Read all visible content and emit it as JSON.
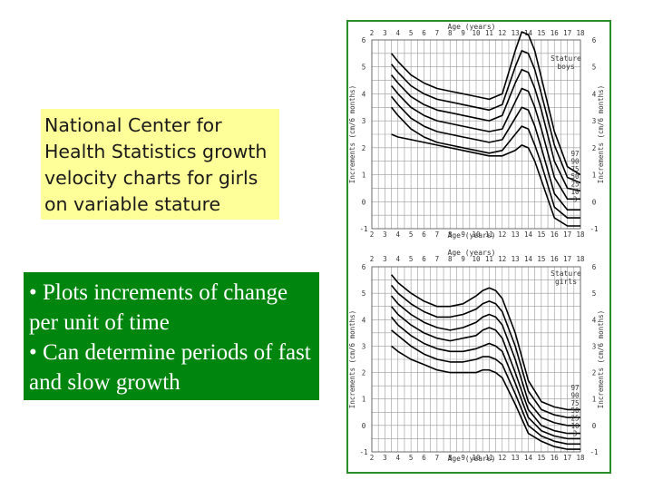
{
  "colors": {
    "yellow": "#ffff99",
    "green": "#00860f",
    "frame": "#2a8c2a",
    "curve": "#000000",
    "grid": "#9a9a9a"
  },
  "info_box": {
    "text": "National Center for Health Statistics growth velocity charts for girls on variable stature"
  },
  "bullets": [
    "• Plots increments of change per unit of time",
    "• Can determine periods of fast and slow growth"
  ],
  "chart_data": [
    {
      "type": "line",
      "title": "Stature boys",
      "xlabel": "Age (years)",
      "ylabel": "Increments (cm/6 months)",
      "xlim": [
        2,
        18
      ],
      "ylim": [
        -1,
        6
      ],
      "x_ticks": [
        "2",
        "3",
        "4",
        "5",
        "6",
        "7",
        "8",
        "9",
        "10",
        "11",
        "12",
        "13",
        "14",
        "15",
        "16",
        "17",
        "18"
      ],
      "y_ticks": [
        "-1",
        "0",
        "1",
        "2",
        "3",
        "4",
        "5",
        "6"
      ],
      "grid": true,
      "x": [
        3.5,
        4,
        5,
        6,
        7,
        8,
        9,
        10,
        11,
        12,
        13,
        13.5,
        14,
        14.5,
        15,
        16,
        17,
        18
      ],
      "series": [
        {
          "name": "97",
          "values": [
            5.5,
            5.2,
            4.7,
            4.4,
            4.2,
            4.1,
            4.0,
            3.9,
            3.8,
            4.0,
            5.6,
            6.3,
            6.2,
            5.6,
            4.6,
            2.6,
            1.3,
            1.0
          ]
        },
        {
          "name": "90",
          "values": [
            5.1,
            4.8,
            4.3,
            4.0,
            3.8,
            3.7,
            3.6,
            3.5,
            3.4,
            3.6,
            5.0,
            5.6,
            5.5,
            4.9,
            4.0,
            2.1,
            0.9,
            0.7
          ]
        },
        {
          "name": "75",
          "values": [
            4.7,
            4.4,
            3.9,
            3.6,
            3.4,
            3.3,
            3.2,
            3.1,
            3.0,
            3.2,
            4.4,
            4.9,
            4.8,
            4.2,
            3.4,
            1.5,
            0.5,
            0.4
          ]
        },
        {
          "name": "50",
          "values": [
            4.3,
            4.0,
            3.5,
            3.2,
            3.0,
            2.9,
            2.8,
            2.7,
            2.6,
            2.7,
            3.7,
            4.2,
            4.1,
            3.5,
            2.7,
            0.9,
            0.1,
            0.1
          ]
        },
        {
          "name": "25",
          "values": [
            3.9,
            3.6,
            3.1,
            2.8,
            2.6,
            2.5,
            2.4,
            2.3,
            2.2,
            2.3,
            3.1,
            3.5,
            3.4,
            2.8,
            2.0,
            0.3,
            -0.3,
            -0.3
          ]
        },
        {
          "name": "10",
          "values": [
            3.5,
            3.2,
            2.7,
            2.4,
            2.2,
            2.1,
            2.0,
            1.9,
            1.8,
            1.9,
            2.5,
            2.8,
            2.7,
            2.1,
            1.4,
            -0.2,
            -0.6,
            -0.6
          ]
        },
        {
          "name": "3",
          "values": [
            2.5,
            2.4,
            2.3,
            2.2,
            2.1,
            2.0,
            1.9,
            1.8,
            1.7,
            1.7,
            1.9,
            2.1,
            2.0,
            1.5,
            0.8,
            -0.6,
            -0.9,
            -0.9
          ]
        }
      ]
    },
    {
      "type": "line",
      "title": "Stature girls",
      "xlabel": "Age (years)",
      "ylabel": "Increments (cm/6 months)",
      "xlim": [
        2,
        18
      ],
      "ylim": [
        -1,
        6
      ],
      "x_ticks": [
        "2",
        "3",
        "4",
        "5",
        "6",
        "7",
        "8",
        "9",
        "10",
        "11",
        "12",
        "13",
        "14",
        "15",
        "16",
        "17",
        "18"
      ],
      "y_ticks": [
        "-1",
        "0",
        "1",
        "2",
        "3",
        "4",
        "5",
        "6"
      ],
      "grid": true,
      "x": [
        3.5,
        4,
        5,
        6,
        7,
        8,
        9,
        10,
        10.5,
        11,
        11.5,
        12,
        13,
        14,
        15,
        16,
        17,
        18
      ],
      "series": [
        {
          "name": "97",
          "values": [
            5.7,
            5.4,
            5.0,
            4.7,
            4.5,
            4.5,
            4.6,
            4.9,
            5.1,
            5.2,
            5.1,
            4.8,
            3.5,
            1.7,
            0.9,
            0.7,
            0.6,
            0.6
          ]
        },
        {
          "name": "90",
          "values": [
            5.3,
            5.0,
            4.6,
            4.3,
            4.1,
            4.1,
            4.2,
            4.4,
            4.6,
            4.7,
            4.6,
            4.3,
            3.0,
            1.3,
            0.6,
            0.4,
            0.3,
            0.3
          ]
        },
        {
          "name": "75",
          "values": [
            4.9,
            4.6,
            4.2,
            3.9,
            3.7,
            3.6,
            3.7,
            3.9,
            4.1,
            4.2,
            4.1,
            3.8,
            2.5,
            0.9,
            0.3,
            0.1,
            0.0,
            0.0
          ]
        },
        {
          "name": "50",
          "values": [
            4.5,
            4.2,
            3.8,
            3.5,
            3.3,
            3.2,
            3.3,
            3.4,
            3.6,
            3.7,
            3.6,
            3.3,
            2.0,
            0.6,
            0.0,
            -0.2,
            -0.3,
            -0.3
          ]
        },
        {
          "name": "25",
          "values": [
            4.1,
            3.8,
            3.4,
            3.1,
            2.9,
            2.8,
            2.8,
            2.9,
            3.0,
            3.1,
            3.0,
            2.8,
            1.6,
            0.3,
            -0.2,
            -0.4,
            -0.5,
            -0.5
          ]
        },
        {
          "name": "10",
          "values": [
            3.6,
            3.4,
            3.0,
            2.7,
            2.5,
            2.4,
            2.4,
            2.5,
            2.6,
            2.6,
            2.5,
            2.3,
            1.2,
            0.0,
            -0.4,
            -0.6,
            -0.7,
            -0.7
          ]
        },
        {
          "name": "3",
          "values": [
            3.0,
            2.8,
            2.5,
            2.3,
            2.1,
            2.0,
            2.0,
            2.0,
            2.1,
            2.1,
            2.0,
            1.8,
            0.8,
            -0.3,
            -0.6,
            -0.8,
            -0.9,
            -0.9
          ]
        }
      ]
    }
  ]
}
